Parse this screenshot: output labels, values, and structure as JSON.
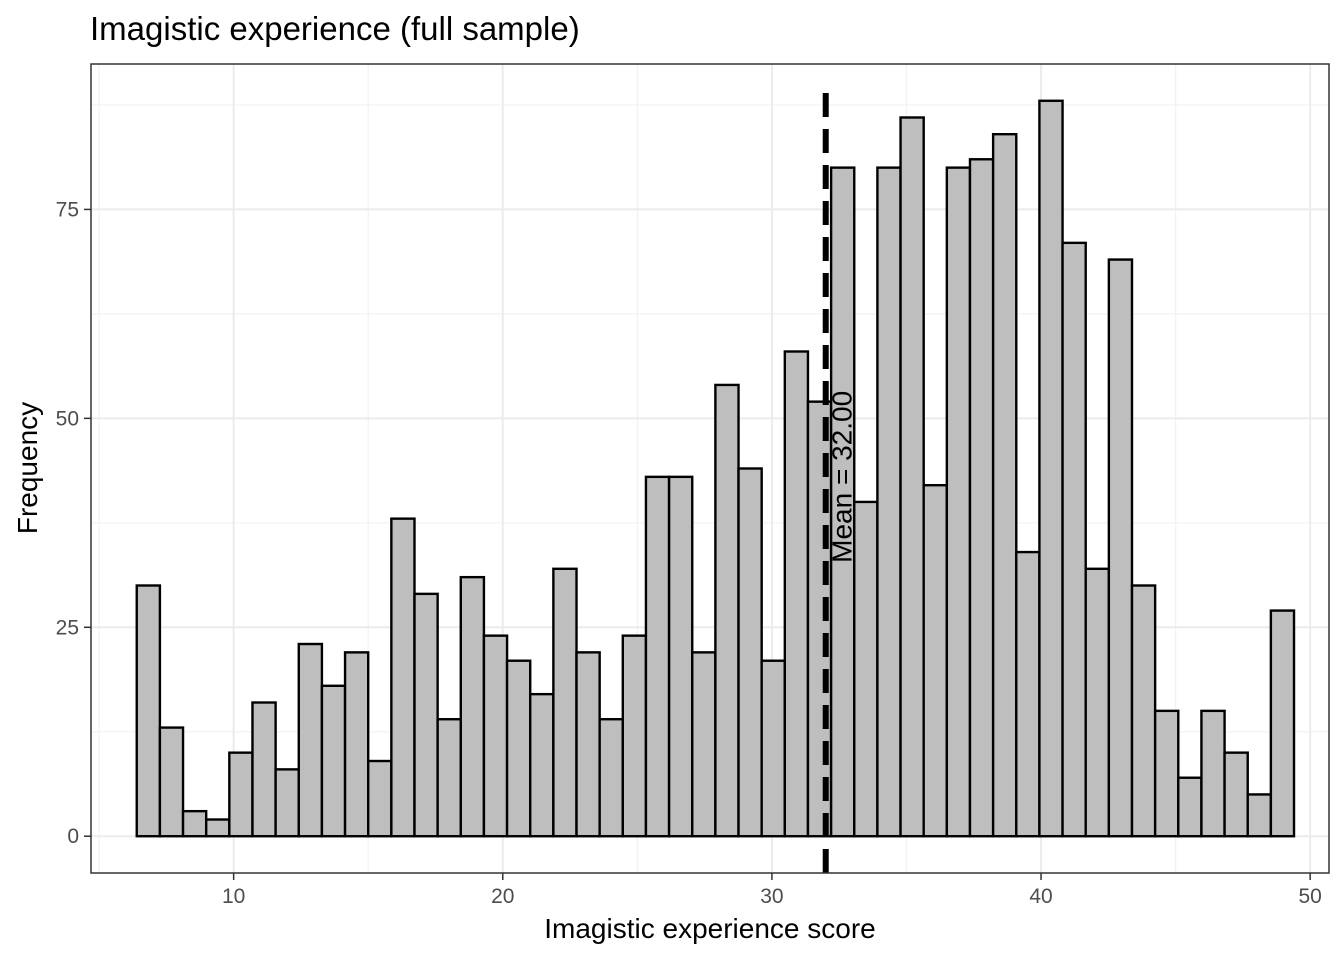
{
  "chart_data": {
    "type": "bar",
    "title": "Imagistic experience (full sample)",
    "xlabel": "Imagistic experience score",
    "ylabel": "Frequency",
    "xlim": [
      4.7,
      50.7
    ],
    "ylim": [
      -4.4,
      92.4
    ],
    "x_ticks": [
      10,
      20,
      30,
      40,
      50
    ],
    "x_tick_labels": [
      "10",
      "20",
      "30",
      "40",
      "50"
    ],
    "y_ticks": [
      0,
      25,
      50,
      75
    ],
    "y_tick_labels": [
      "0",
      "25",
      "50",
      "75"
    ],
    "bin_start": 6.4,
    "bin_width": 0.86,
    "values": [
      30,
      13,
      3,
      2,
      10,
      16,
      8,
      23,
      18,
      22,
      9,
      38,
      29,
      14,
      31,
      24,
      21,
      17,
      32,
      22,
      14,
      24,
      43,
      43,
      22,
      54,
      44,
      21,
      58,
      52,
      80,
      40,
      80,
      86,
      42,
      80,
      81,
      84,
      34,
      88,
      71,
      32,
      69,
      30,
      15,
      7,
      15,
      10,
      5,
      27
    ],
    "mean_line": {
      "x": 32.0,
      "label": "Mean =  32.00",
      "style": "dashed"
    },
    "bar_fill": "#bebebe",
    "bar_stroke": "#000000",
    "grid": true,
    "legend": "none"
  }
}
